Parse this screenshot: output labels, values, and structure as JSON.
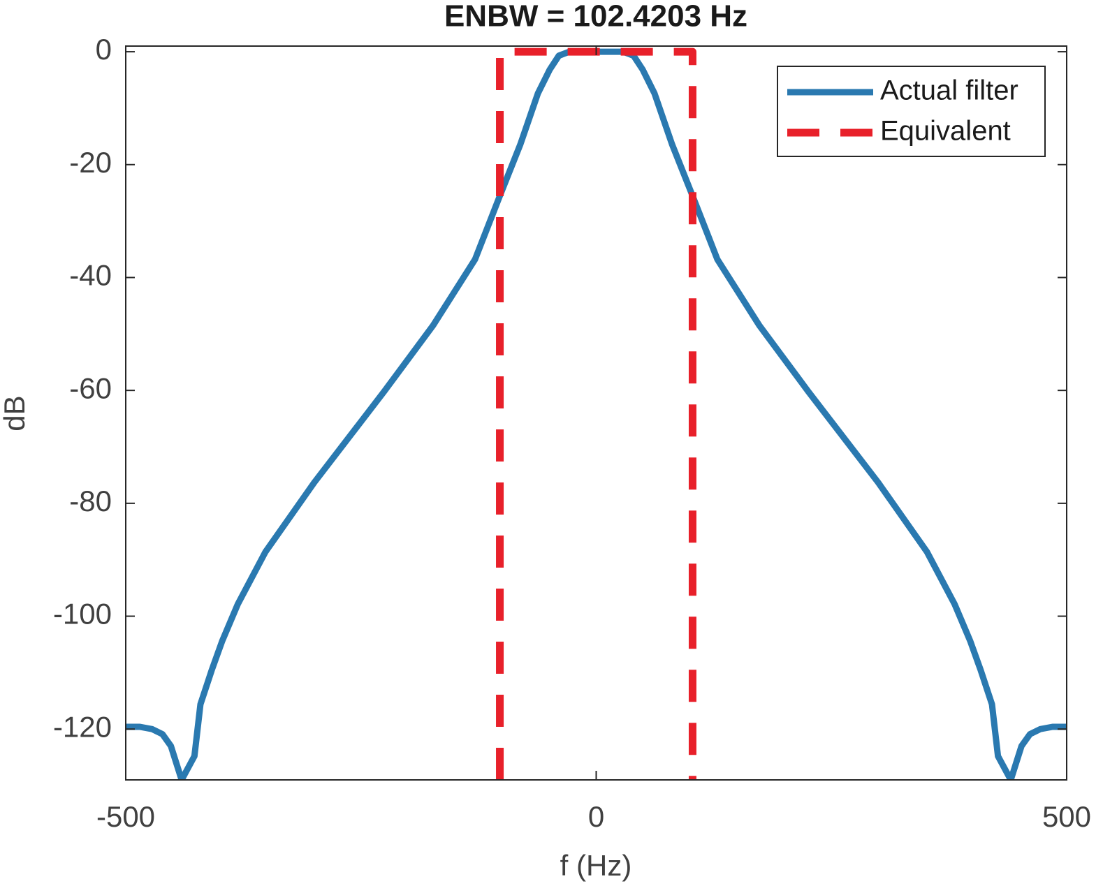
{
  "chart_data": {
    "type": "line",
    "title": "ENBW = 102.4203 Hz",
    "xlabel": "f (Hz)",
    "ylabel": "dB",
    "xlim": [
      -500,
      500
    ],
    "ylim": [
      -129,
      1
    ],
    "xticks": [
      -500,
      0,
      500
    ],
    "yticks": [
      0,
      -20,
      -40,
      -60,
      -80,
      -100,
      -120
    ],
    "grid": false,
    "legend": "upper right",
    "series": [
      {
        "name": "Actual filter",
        "color": "#2a79b0",
        "style": "solid",
        "x": [
          -500,
          -485,
          -472,
          -461,
          -452,
          -440.6,
          -427,
          -420.6,
          -408.7,
          -397.5,
          -381,
          -351.5,
          -299.6,
          -225.4,
          -173.4,
          -128.8,
          -102.8,
          -80.6,
          -62,
          -49.5,
          -39.7,
          -28.6,
          0,
          28.6,
          39.7,
          49.5,
          62,
          80.6,
          102.8,
          128.8,
          173.4,
          225.4,
          299.6,
          351.5,
          381,
          397.5,
          408.7,
          420.6,
          427,
          440.6,
          452,
          461,
          472,
          485,
          500
        ],
        "values": [
          -119.6,
          -119.6,
          -120,
          -120.9,
          -123,
          -129,
          -124.8,
          -115.6,
          -109.6,
          -104.4,
          -97.9,
          -88.6,
          -76.3,
          -60.2,
          -48.5,
          -36.8,
          -25.7,
          -16.4,
          -7.4,
          -3.2,
          -0.7,
          0,
          0,
          0,
          -0.7,
          -3.2,
          -7.4,
          -16.4,
          -25.7,
          -36.8,
          -48.5,
          -60.2,
          -76.3,
          -88.6,
          -97.9,
          -104.4,
          -109.6,
          -115.6,
          -124.8,
          -129,
          -123,
          -120.9,
          -120,
          -119.6,
          -119.6
        ]
      },
      {
        "name": "Equivalent",
        "color": "#e8202a",
        "style": "dashed",
        "x": [
          -102.4203,
          -102.4203,
          102.4203,
          102.4203
        ],
        "values": [
          -129,
          0,
          0,
          -129
        ]
      }
    ]
  }
}
